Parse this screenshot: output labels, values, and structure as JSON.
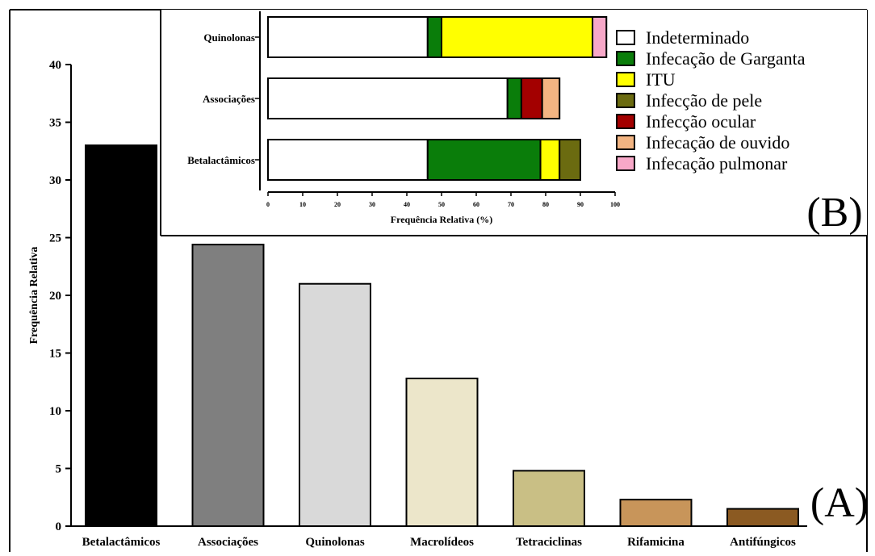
{
  "chart_data": [
    {
      "panel_label": "(A)",
      "type": "bar",
      "ylabel": "Frequência Relativa",
      "xlabel": "",
      "ylim": [
        0,
        40
      ],
      "yticks": [
        0,
        5,
        10,
        15,
        20,
        25,
        30,
        35,
        40
      ],
      "categories": [
        "Betalactâmicos",
        "Associações",
        "Quinolonas",
        "Macrolídeos",
        "Tetraciclinas",
        "Rifamicina",
        "Antifúngicos"
      ],
      "values": [
        33.0,
        24.4,
        21.0,
        12.8,
        4.8,
        2.3,
        1.5
      ],
      "colors": [
        "#000000",
        "#7f7f7f",
        "#d9d9d9",
        "#ece6ca",
        "#c9bf85",
        "#c8955a",
        "#8b5a22"
      ],
      "grid": false,
      "legend": "none"
    },
    {
      "panel_label": "(B)",
      "type": "bar",
      "orientation": "horizontal",
      "stacked": true,
      "xlabel": "Frequência Relativa (%)",
      "ylabel": "",
      "xlim": [
        0,
        100
      ],
      "xticks": [
        0,
        10,
        20,
        30,
        40,
        50,
        60,
        70,
        80,
        90,
        100
      ],
      "categories": [
        "Quinolonas",
        "Associações",
        "Betalactâmicos"
      ],
      "legend": "right",
      "series": [
        {
          "name": "Indeterminado",
          "color": "#ffffff",
          "values": [
            46,
            69,
            46
          ]
        },
        {
          "name": "Infecação de Garganta",
          "color": "#0a7d0a",
          "values": [
            4,
            4,
            32.5
          ]
        },
        {
          "name": "ITU",
          "color": "#ffff00",
          "values": [
            43.5,
            0,
            5.5
          ]
        },
        {
          "name": "Infecção de pele",
          "color": "#6b6b10",
          "values": [
            0,
            0,
            6
          ]
        },
        {
          "name": "Infecção ocular",
          "color": "#a30000",
          "values": [
            0,
            6,
            0
          ]
        },
        {
          "name": "Infecação de ouvido",
          "color": "#f2b482",
          "values": [
            0,
            5,
            0
          ]
        },
        {
          "name": "Infecação pulmonar",
          "color": "#f7a8c8",
          "values": [
            4,
            0,
            0
          ]
        }
      ],
      "grid": false
    }
  ]
}
